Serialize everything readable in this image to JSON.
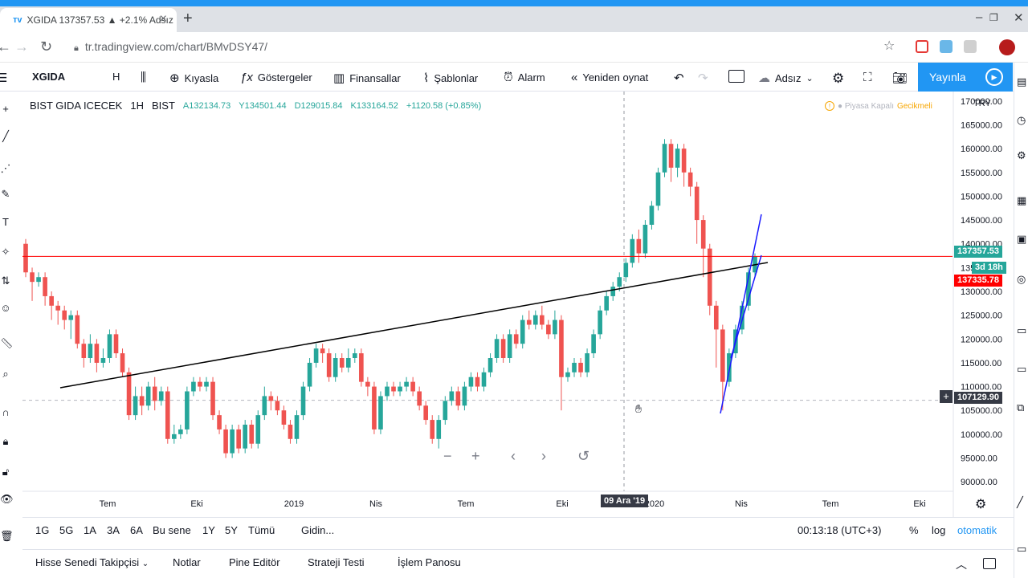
{
  "browser": {
    "tab_title": "XGIDA 137357.53 ▲ +2.1% Adsız",
    "url": "tr.tradingview.com/chart/BMvDSY47/"
  },
  "toolbar": {
    "symbol": "XGIDA",
    "interval": "H",
    "compare": "Kıyasla",
    "indicators": "Göstergeler",
    "financials": "Finansallar",
    "templates": "Şablonlar",
    "alert": "Alarm",
    "replay": "Yeniden oynat",
    "layout_name": "Adsız",
    "publish": "Yayınla"
  },
  "legend": {
    "name": "BIST GIDA ICECEK",
    "interval": "1H",
    "exchange": "BIST",
    "open": "A132134.73",
    "high": "Y134501.44",
    "low": "D129015.84",
    "close": "K133164.52",
    "change": "+1120.58 (+0.85%)"
  },
  "market_status": {
    "closed": "● Piyasa Kapalı",
    "delayed": "Gecikmeli"
  },
  "price_scale": {
    "currency": "TRY",
    "last_price": "137357.53",
    "countdown": "3d 18h",
    "red_level": "137335.78",
    "crosshair_price": "107129.90"
  },
  "crosshair_date": "09 Ara '19",
  "chart_data": {
    "type": "candlestick",
    "ylim": [
      88000,
      172000
    ],
    "y_ticks": [
      90000,
      95000,
      100000,
      105000,
      110000,
      115000,
      120000,
      125000,
      130000,
      135000,
      140000,
      145000,
      150000,
      155000,
      160000,
      165000,
      170000
    ],
    "x_ticks": [
      "Tem",
      "Eki",
      "2019",
      "Nis",
      "Tem",
      "Eki",
      "2020",
      "Nis",
      "Tem",
      "Eki"
    ],
    "horizontal_line": 137357.53,
    "candles": [
      [
        140000,
        134000,
        141000,
        133000
      ],
      [
        134000,
        132000,
        135000,
        128000
      ],
      [
        132000,
        133000,
        134000,
        131000
      ],
      [
        133000,
        129000,
        134000,
        127000
      ],
      [
        129000,
        127000,
        130000,
        124000
      ],
      [
        127000,
        126000,
        128000,
        123000
      ],
      [
        126000,
        124000,
        127000,
        122000
      ],
      [
        124000,
        125000,
        126000,
        120000
      ],
      [
        125000,
        119000,
        126000,
        118000
      ],
      [
        119000,
        116000,
        120000,
        114000
      ],
      [
        116000,
        119000,
        121000,
        115000
      ],
      [
        119000,
        115000,
        120000,
        113000
      ],
      [
        115000,
        116000,
        118000,
        114000
      ],
      [
        116000,
        121000,
        122000,
        115000
      ],
      [
        121000,
        117000,
        122000,
        116000
      ],
      [
        117000,
        113000,
        118000,
        112000
      ],
      [
        113000,
        104000,
        114000,
        103000
      ],
      [
        104000,
        108000,
        110000,
        103000
      ],
      [
        108000,
        106000,
        110000,
        104000
      ],
      [
        106000,
        110000,
        111000,
        105000
      ],
      [
        110000,
        107000,
        112000,
        105000
      ],
      [
        107000,
        109000,
        110000,
        106000
      ],
      [
        109000,
        99000,
        110000,
        98000
      ],
      [
        99000,
        100000,
        102000,
        98000
      ],
      [
        100000,
        101000,
        102000,
        99000
      ],
      [
        101000,
        109000,
        110000,
        100000
      ],
      [
        109000,
        111000,
        112000,
        108000
      ],
      [
        111000,
        110000,
        112000,
        109000
      ],
      [
        110000,
        111000,
        112000,
        109000
      ],
      [
        111000,
        104000,
        112000,
        103000
      ],
      [
        104000,
        101000,
        105000,
        100000
      ],
      [
        101000,
        96000,
        102000,
        95000
      ],
      [
        96000,
        101000,
        102000,
        95000
      ],
      [
        101000,
        97000,
        102000,
        96000
      ],
      [
        97000,
        102000,
        103000,
        96000
      ],
      [
        102000,
        98000,
        103000,
        97000
      ],
      [
        98000,
        104000,
        105000,
        97000
      ],
      [
        104000,
        108000,
        110000,
        103000
      ],
      [
        108000,
        107000,
        109000,
        105000
      ],
      [
        107000,
        105000,
        108000,
        104000
      ],
      [
        105000,
        102000,
        106000,
        101000
      ],
      [
        102000,
        99000,
        103000,
        98000
      ],
      [
        99000,
        104000,
        105000,
        98000
      ],
      [
        104000,
        110000,
        111000,
        103000
      ],
      [
        110000,
        115000,
        116000,
        109000
      ],
      [
        115000,
        118000,
        119000,
        114000
      ],
      [
        118000,
        117000,
        119000,
        115000
      ],
      [
        117000,
        112000,
        118000,
        111000
      ],
      [
        112000,
        116000,
        117000,
        111000
      ],
      [
        116000,
        114000,
        117000,
        113000
      ],
      [
        114000,
        116000,
        118000,
        113000
      ],
      [
        116000,
        117000,
        118000,
        115000
      ],
      [
        117000,
        111000,
        118000,
        110000
      ],
      [
        111000,
        110000,
        112000,
        108000
      ],
      [
        110000,
        101000,
        111000,
        100000
      ],
      [
        101000,
        108000,
        109000,
        100000
      ],
      [
        108000,
        110000,
        111000,
        107000
      ],
      [
        110000,
        109000,
        111000,
        108000
      ],
      [
        109000,
        110000,
        111000,
        108000
      ],
      [
        110000,
        111000,
        112000,
        109000
      ],
      [
        111000,
        109000,
        112000,
        108000
      ],
      [
        109000,
        106000,
        110000,
        105000
      ],
      [
        106000,
        103000,
        107000,
        102000
      ],
      [
        103000,
        99000,
        104000,
        98000
      ],
      [
        99000,
        103000,
        104000,
        97000
      ],
      [
        103000,
        107000,
        108000,
        102000
      ],
      [
        107000,
        109000,
        110000,
        106000
      ],
      [
        109000,
        106000,
        110000,
        105000
      ],
      [
        106000,
        110000,
        111000,
        105000
      ],
      [
        110000,
        112000,
        113000,
        109000
      ],
      [
        112000,
        110000,
        113000,
        109000
      ],
      [
        110000,
        113000,
        114000,
        109000
      ],
      [
        113000,
        116000,
        117000,
        112000
      ],
      [
        116000,
        120000,
        121000,
        115000
      ],
      [
        120000,
        116000,
        121000,
        115000
      ],
      [
        116000,
        121000,
        122000,
        115000
      ],
      [
        121000,
        119000,
        122000,
        118000
      ],
      [
        119000,
        124000,
        125000,
        118000
      ],
      [
        124000,
        123000,
        126000,
        122000
      ],
      [
        123000,
        125000,
        126000,
        122000
      ],
      [
        125000,
        123000,
        127000,
        122000
      ],
      [
        123000,
        121000,
        124000,
        120000
      ],
      [
        121000,
        124000,
        126000,
        120000
      ],
      [
        124000,
        112000,
        125000,
        105000
      ],
      [
        112000,
        113000,
        114000,
        111000
      ],
      [
        113000,
        115000,
        116000,
        112000
      ],
      [
        115000,
        113000,
        116000,
        112000
      ],
      [
        113000,
        117000,
        118000,
        112000
      ],
      [
        117000,
        121000,
        122000,
        116000
      ],
      [
        121000,
        126000,
        127000,
        120000
      ],
      [
        126000,
        129000,
        130000,
        125000
      ],
      [
        129000,
        131000,
        132000,
        128000
      ],
      [
        131000,
        133000,
        134000,
        130000
      ],
      [
        133000,
        136000,
        137000,
        132000
      ],
      [
        136000,
        141000,
        142000,
        135000
      ],
      [
        141000,
        138000,
        143000,
        136000
      ],
      [
        138000,
        144000,
        145000,
        137000
      ],
      [
        144000,
        148000,
        149000,
        143000
      ],
      [
        148000,
        155000,
        156000,
        147000
      ],
      [
        155000,
        161000,
        162000,
        154000
      ],
      [
        161000,
        156000,
        162000,
        153000
      ],
      [
        156000,
        160000,
        161000,
        154000
      ],
      [
        160000,
        155000,
        161000,
        152000
      ],
      [
        155000,
        152000,
        156000,
        150000
      ],
      [
        152000,
        145000,
        153000,
        140000
      ],
      [
        145000,
        139000,
        146000,
        133000
      ],
      [
        139000,
        127000,
        140000,
        125000
      ],
      [
        127000,
        122000,
        128000,
        114000
      ],
      [
        122000,
        111000,
        123000,
        105000
      ],
      [
        111000,
        117000,
        118000,
        110000
      ],
      [
        117000,
        122000,
        123000,
        116000
      ],
      [
        122000,
        127000,
        128000,
        121000
      ],
      [
        127000,
        134000,
        135000,
        126000
      ],
      [
        134000,
        137357,
        138000,
        133000
      ]
    ]
  },
  "trendlines": "3 drawn lines",
  "range_bar": {
    "ranges": [
      "1G",
      "5G",
      "1A",
      "3A",
      "6A",
      "Bu sene",
      "1Y",
      "5Y",
      "Tümü"
    ],
    "goto": "Gidin...",
    "clock": "00:13:18 (UTC+3)",
    "percent": "%",
    "log": "log",
    "auto": "otomatik"
  },
  "bottom_panel": {
    "tabs": [
      "Hisse Senedi Takipçisi",
      "Notlar",
      "Pine Editör",
      "Strateji Testi",
      "İşlem Panosu"
    ]
  },
  "colors": {
    "up": "#26a69a",
    "down": "#ef5350",
    "accent": "#2196f3"
  }
}
